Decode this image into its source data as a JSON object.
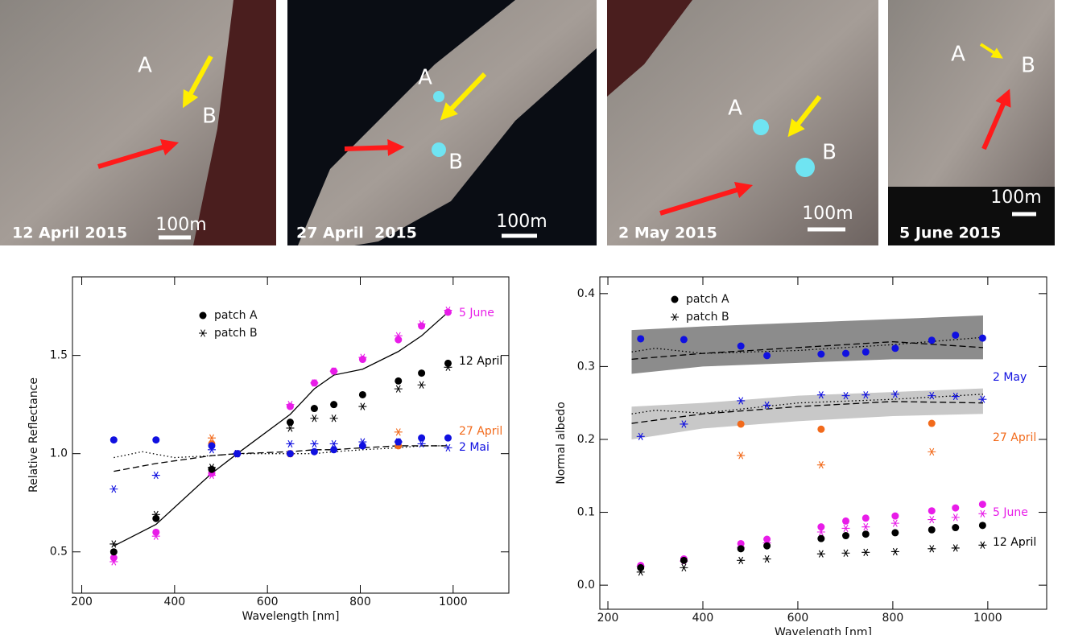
{
  "images": [
    {
      "date": "12 April 2015",
      "labels": [
        "A",
        "B"
      ],
      "scale": "100m"
    },
    {
      "date": "27 April  2015",
      "labels": [
        "A",
        "B"
      ],
      "scale": "100m"
    },
    {
      "date": "2 May 2015",
      "labels": [
        "A",
        "B"
      ],
      "scale": "100m"
    },
    {
      "date": "5 June 2015",
      "labels": [
        "A",
        "B"
      ],
      "scale": "100m"
    }
  ],
  "chart_data": [
    {
      "type": "scatter",
      "xlabel": "Wavelength [nm]",
      "ylabel": "Relative Reflectance",
      "xlim": [
        180,
        1120
      ],
      "ylim": [
        0.29,
        1.9
      ],
      "xticks": [
        200,
        400,
        600,
        800,
        1000
      ],
      "yticks": [
        0.5,
        {
          "value": 1,
          "label": "1.0"
        },
        1.5
      ],
      "legend": [
        {
          "label": "patch A",
          "marker": "dot"
        },
        {
          "label": "patch B",
          "marker": "star"
        }
      ],
      "annotations": [
        {
          "text": "5 June",
          "color": "#e81ce8"
        },
        {
          "text": "12 April",
          "color": "#000000"
        },
        {
          "text": "27 April",
          "color": "#f26a1b"
        },
        {
          "text": "2 Mai",
          "color": "#1010e0"
        }
      ],
      "series": [
        {
          "kind": "line",
          "color": "#000000",
          "x": [
            269,
            360,
            480,
            535,
            649,
            701,
            743,
            805,
            882,
            932,
            989
          ],
          "values": [
            0.53,
            0.64,
            0.9,
            1.0,
            1.2,
            1.33,
            1.4,
            1.43,
            1.52,
            1.6,
            1.72
          ]
        },
        {
          "kind": "dashed",
          "color": "#000000",
          "x": [
            269,
            360,
            480,
            535,
            649,
            701,
            743,
            805,
            882,
            932,
            989
          ],
          "values": [
            0.91,
            0.95,
            0.99,
            1.0,
            1.01,
            1.02,
            1.02,
            1.03,
            1.04,
            1.04,
            1.04
          ]
        },
        {
          "kind": "dotted",
          "color": "#000000",
          "x": [
            269,
            330,
            400,
            480,
            535,
            649,
            701,
            743,
            805,
            882,
            932,
            989
          ],
          "values": [
            0.98,
            1.01,
            0.98,
            0.99,
            1.0,
            1.0,
            1.0,
            1.01,
            1.02,
            1.03,
            1.04,
            1.04
          ]
        },
        {
          "kind": "dot",
          "color": "#e81ce8",
          "x": [
            269,
            360,
            480,
            535,
            649,
            701,
            743,
            805,
            882,
            932,
            989
          ],
          "values": [
            0.47,
            0.6,
            0.9,
            1.0,
            1.24,
            1.36,
            1.42,
            1.48,
            1.58,
            1.65,
            1.72
          ]
        },
        {
          "kind": "star",
          "color": "#e81ce8",
          "x": [
            269,
            360,
            480,
            535,
            649,
            701,
            743,
            805,
            882,
            932,
            989
          ],
          "values": [
            0.45,
            0.58,
            0.89,
            1.0,
            1.25,
            1.36,
            1.42,
            1.49,
            1.6,
            1.66,
            1.73
          ]
        },
        {
          "kind": "dot",
          "color": "#000000",
          "x": [
            269,
            360,
            480,
            535,
            649,
            701,
            743,
            805,
            882,
            932,
            989
          ],
          "values": [
            0.5,
            0.67,
            0.92,
            1.0,
            1.16,
            1.23,
            1.25,
            1.3,
            1.37,
            1.41,
            1.46
          ]
        },
        {
          "kind": "star",
          "color": "#000000",
          "x": [
            269,
            360,
            480,
            535,
            649,
            701,
            743,
            805,
            882,
            932,
            989
          ],
          "values": [
            0.54,
            0.69,
            0.93,
            1.0,
            1.13,
            1.18,
            1.18,
            1.24,
            1.33,
            1.35,
            1.44
          ]
        },
        {
          "kind": "dot",
          "color": "#f26a1b",
          "x": [
            480,
            649,
            882
          ],
          "values": [
            1.05,
            1.0,
            1.04
          ]
        },
        {
          "kind": "star",
          "color": "#f26a1b",
          "x": [
            480,
            649,
            882
          ],
          "values": [
            1.08,
            1.0,
            1.11
          ]
        },
        {
          "kind": "dot",
          "color": "#1010e0",
          "x": [
            269,
            360,
            480,
            535,
            649,
            701,
            743,
            805,
            882,
            932,
            989
          ],
          "values": [
            1.07,
            1.07,
            1.04,
            1.0,
            1.0,
            1.01,
            1.02,
            1.04,
            1.06,
            1.08,
            1.08
          ]
        },
        {
          "kind": "star",
          "color": "#1010e0",
          "x": [
            269,
            360,
            480,
            535,
            649,
            701,
            743,
            805,
            882,
            932,
            989
          ],
          "values": [
            0.82,
            0.89,
            1.02,
            1.0,
            1.05,
            1.05,
            1.05,
            1.06,
            1.06,
            1.05,
            1.03
          ]
        }
      ]
    },
    {
      "type": "scatter",
      "xlabel": "Wavelength [nm]",
      "ylabel": "Normal albedo",
      "xlim": [
        183,
        1124
      ],
      "ylim": [
        -0.033,
        0.423
      ],
      "xticks": [
        200,
        400,
        600,
        800,
        1000
      ],
      "yticks": [
        {
          "value": 0,
          "label": "0.0"
        },
        0.1,
        0.2,
        0.3,
        0.4
      ],
      "legend": [
        {
          "label": "patch A",
          "marker": "dot"
        },
        {
          "label": "patch B",
          "marker": "star"
        }
      ],
      "annotations": [
        {
          "text": "2 May",
          "color": "#1010e0"
        },
        {
          "text": "27 April",
          "color": "#f26a1b"
        },
        {
          "text": "5 June",
          "color": "#e81ce8"
        },
        {
          "text": "12 April",
          "color": "#000000"
        }
      ],
      "series": [
        {
          "kind": "band",
          "color": "#8c8c8c",
          "x": [
            250,
            400,
            600,
            800,
            990
          ],
          "lower": [
            0.29,
            0.3,
            0.305,
            0.31,
            0.31
          ],
          "upper": [
            0.35,
            0.355,
            0.36,
            0.365,
            0.37
          ]
        },
        {
          "kind": "band",
          "color": "#c8c8c8",
          "x": [
            250,
            400,
            600,
            800,
            990
          ],
          "lower": [
            0.2,
            0.215,
            0.225,
            0.232,
            0.235
          ],
          "upper": [
            0.245,
            0.25,
            0.26,
            0.265,
            0.27
          ]
        },
        {
          "kind": "dashed",
          "color": "#000000",
          "x": [
            250,
            400,
            600,
            800,
            990
          ],
          "values": [
            0.31,
            0.318,
            0.326,
            0.334,
            0.326
          ]
        },
        {
          "kind": "dotted",
          "color": "#000000",
          "x": [
            250,
            300,
            400,
            600,
            800,
            990
          ],
          "values": [
            0.32,
            0.325,
            0.318,
            0.322,
            0.33,
            0.34
          ]
        },
        {
          "kind": "dashed",
          "color": "#000000",
          "x": [
            250,
            400,
            600,
            800,
            990
          ],
          "values": [
            0.222,
            0.235,
            0.245,
            0.252,
            0.25
          ]
        },
        {
          "kind": "dotted",
          "color": "#000000",
          "x": [
            250,
            300,
            400,
            600,
            800,
            990
          ],
          "values": [
            0.235,
            0.24,
            0.236,
            0.25,
            0.255,
            0.262
          ]
        },
        {
          "kind": "dot",
          "color": "#1010e0",
          "x": [
            269,
            360,
            480,
            535,
            649,
            701,
            743,
            805,
            882,
            932,
            989
          ],
          "values": [
            0.338,
            0.337,
            0.328,
            0.315,
            0.317,
            0.318,
            0.32,
            0.325,
            0.336,
            0.343,
            0.339
          ]
        },
        {
          "kind": "star",
          "color": "#1010e0",
          "x": [
            269,
            360,
            480,
            535,
            649,
            701,
            743,
            805,
            882,
            932,
            989
          ],
          "values": [
            0.204,
            0.221,
            0.253,
            0.247,
            0.261,
            0.26,
            0.261,
            0.262,
            0.26,
            0.259,
            0.255
          ]
        },
        {
          "kind": "dot",
          "color": "#f26a1b",
          "x": [
            480,
            649,
            882
          ],
          "values": [
            0.221,
            0.214,
            0.222
          ]
        },
        {
          "kind": "star",
          "color": "#f26a1b",
          "x": [
            480,
            649,
            882
          ],
          "values": [
            0.178,
            0.165,
            0.183
          ]
        },
        {
          "kind": "dot",
          "color": "#e81ce8",
          "x": [
            269,
            360,
            480,
            535,
            649,
            701,
            743,
            805,
            882,
            932,
            989
          ],
          "values": [
            0.027,
            0.036,
            0.057,
            0.063,
            0.08,
            0.088,
            0.092,
            0.095,
            0.102,
            0.106,
            0.111
          ]
        },
        {
          "kind": "star",
          "color": "#e81ce8",
          "x": [
            269,
            360,
            480,
            535,
            649,
            701,
            743,
            805,
            882,
            932,
            989
          ],
          "values": [
            0.026,
            0.033,
            0.052,
            0.058,
            0.073,
            0.078,
            0.08,
            0.085,
            0.09,
            0.093,
            0.098
          ]
        },
        {
          "kind": "dot",
          "color": "#000000",
          "x": [
            269,
            360,
            480,
            535,
            649,
            701,
            743,
            805,
            882,
            932,
            989
          ],
          "values": [
            0.024,
            0.034,
            0.05,
            0.054,
            0.064,
            0.068,
            0.07,
            0.072,
            0.076,
            0.079,
            0.082
          ]
        },
        {
          "kind": "star",
          "color": "#000000",
          "x": [
            269,
            360,
            480,
            535,
            649,
            701,
            743,
            805,
            882,
            932,
            989
          ],
          "values": [
            0.018,
            0.024,
            0.034,
            0.036,
            0.043,
            0.044,
            0.045,
            0.046,
            0.05,
            0.051,
            0.055
          ]
        }
      ]
    }
  ]
}
